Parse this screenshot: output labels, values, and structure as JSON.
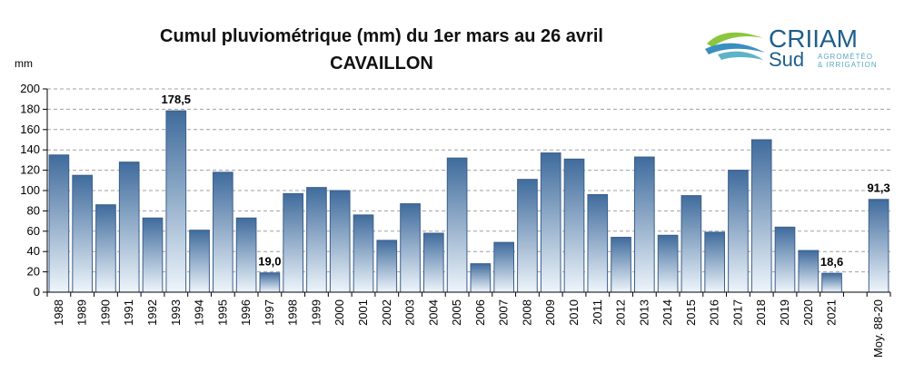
{
  "chart_data": {
    "type": "bar",
    "title": "Cumul pluviométrique (mm) du 1er mars au 26 avril",
    "subtitle": "CAVAILLON",
    "ylabel": "mm",
    "ylim": [
      0,
      200
    ],
    "yticks": [
      0,
      20,
      40,
      60,
      80,
      100,
      120,
      140,
      160,
      180,
      200
    ],
    "grid": true,
    "categories": [
      "1988",
      "1989",
      "1990",
      "1991",
      "1992",
      "1993",
      "1994",
      "1995",
      "1996",
      "1997",
      "1998",
      "1999",
      "2000",
      "2001",
      "2002",
      "2003",
      "2004",
      "2005",
      "2006",
      "2007",
      "2008",
      "2009",
      "2010",
      "2011",
      "2012",
      "2013",
      "2014",
      "2015",
      "2016",
      "2017",
      "2018",
      "2019",
      "2020",
      "2021",
      "Moy. 88-20"
    ],
    "values": [
      135,
      115,
      86,
      128,
      73,
      178.5,
      61,
      118,
      73,
      19.0,
      97,
      103,
      100,
      76,
      51,
      87,
      58,
      132,
      28,
      49,
      111,
      137,
      131,
      96,
      54,
      133,
      56,
      95,
      59,
      120,
      150,
      64,
      41,
      18.6,
      91.3
    ],
    "gap_before_index": 34,
    "data_labels": [
      {
        "index": 5,
        "text": "178,5"
      },
      {
        "index": 9,
        "text": "19,0"
      },
      {
        "index": 33,
        "text": "18,6"
      },
      {
        "index": 34,
        "text": "91,3"
      }
    ],
    "colors": {
      "bar_top": "#3f6b9c",
      "bar_bottom": "#eef5fb",
      "bar_border": "#3b5f8c",
      "grid": "#a0a0a0",
      "axis": "#000000"
    }
  },
  "logo": {
    "name": "CRIIAM",
    "sub": "Sud",
    "tagline": [
      "AGROMÉTÉO",
      "& IRRIGATION"
    ],
    "colors": {
      "text": "#1f5f8b",
      "swoosh_green": "#8cc63e",
      "swoosh_blue": "#3a8fc0"
    }
  }
}
